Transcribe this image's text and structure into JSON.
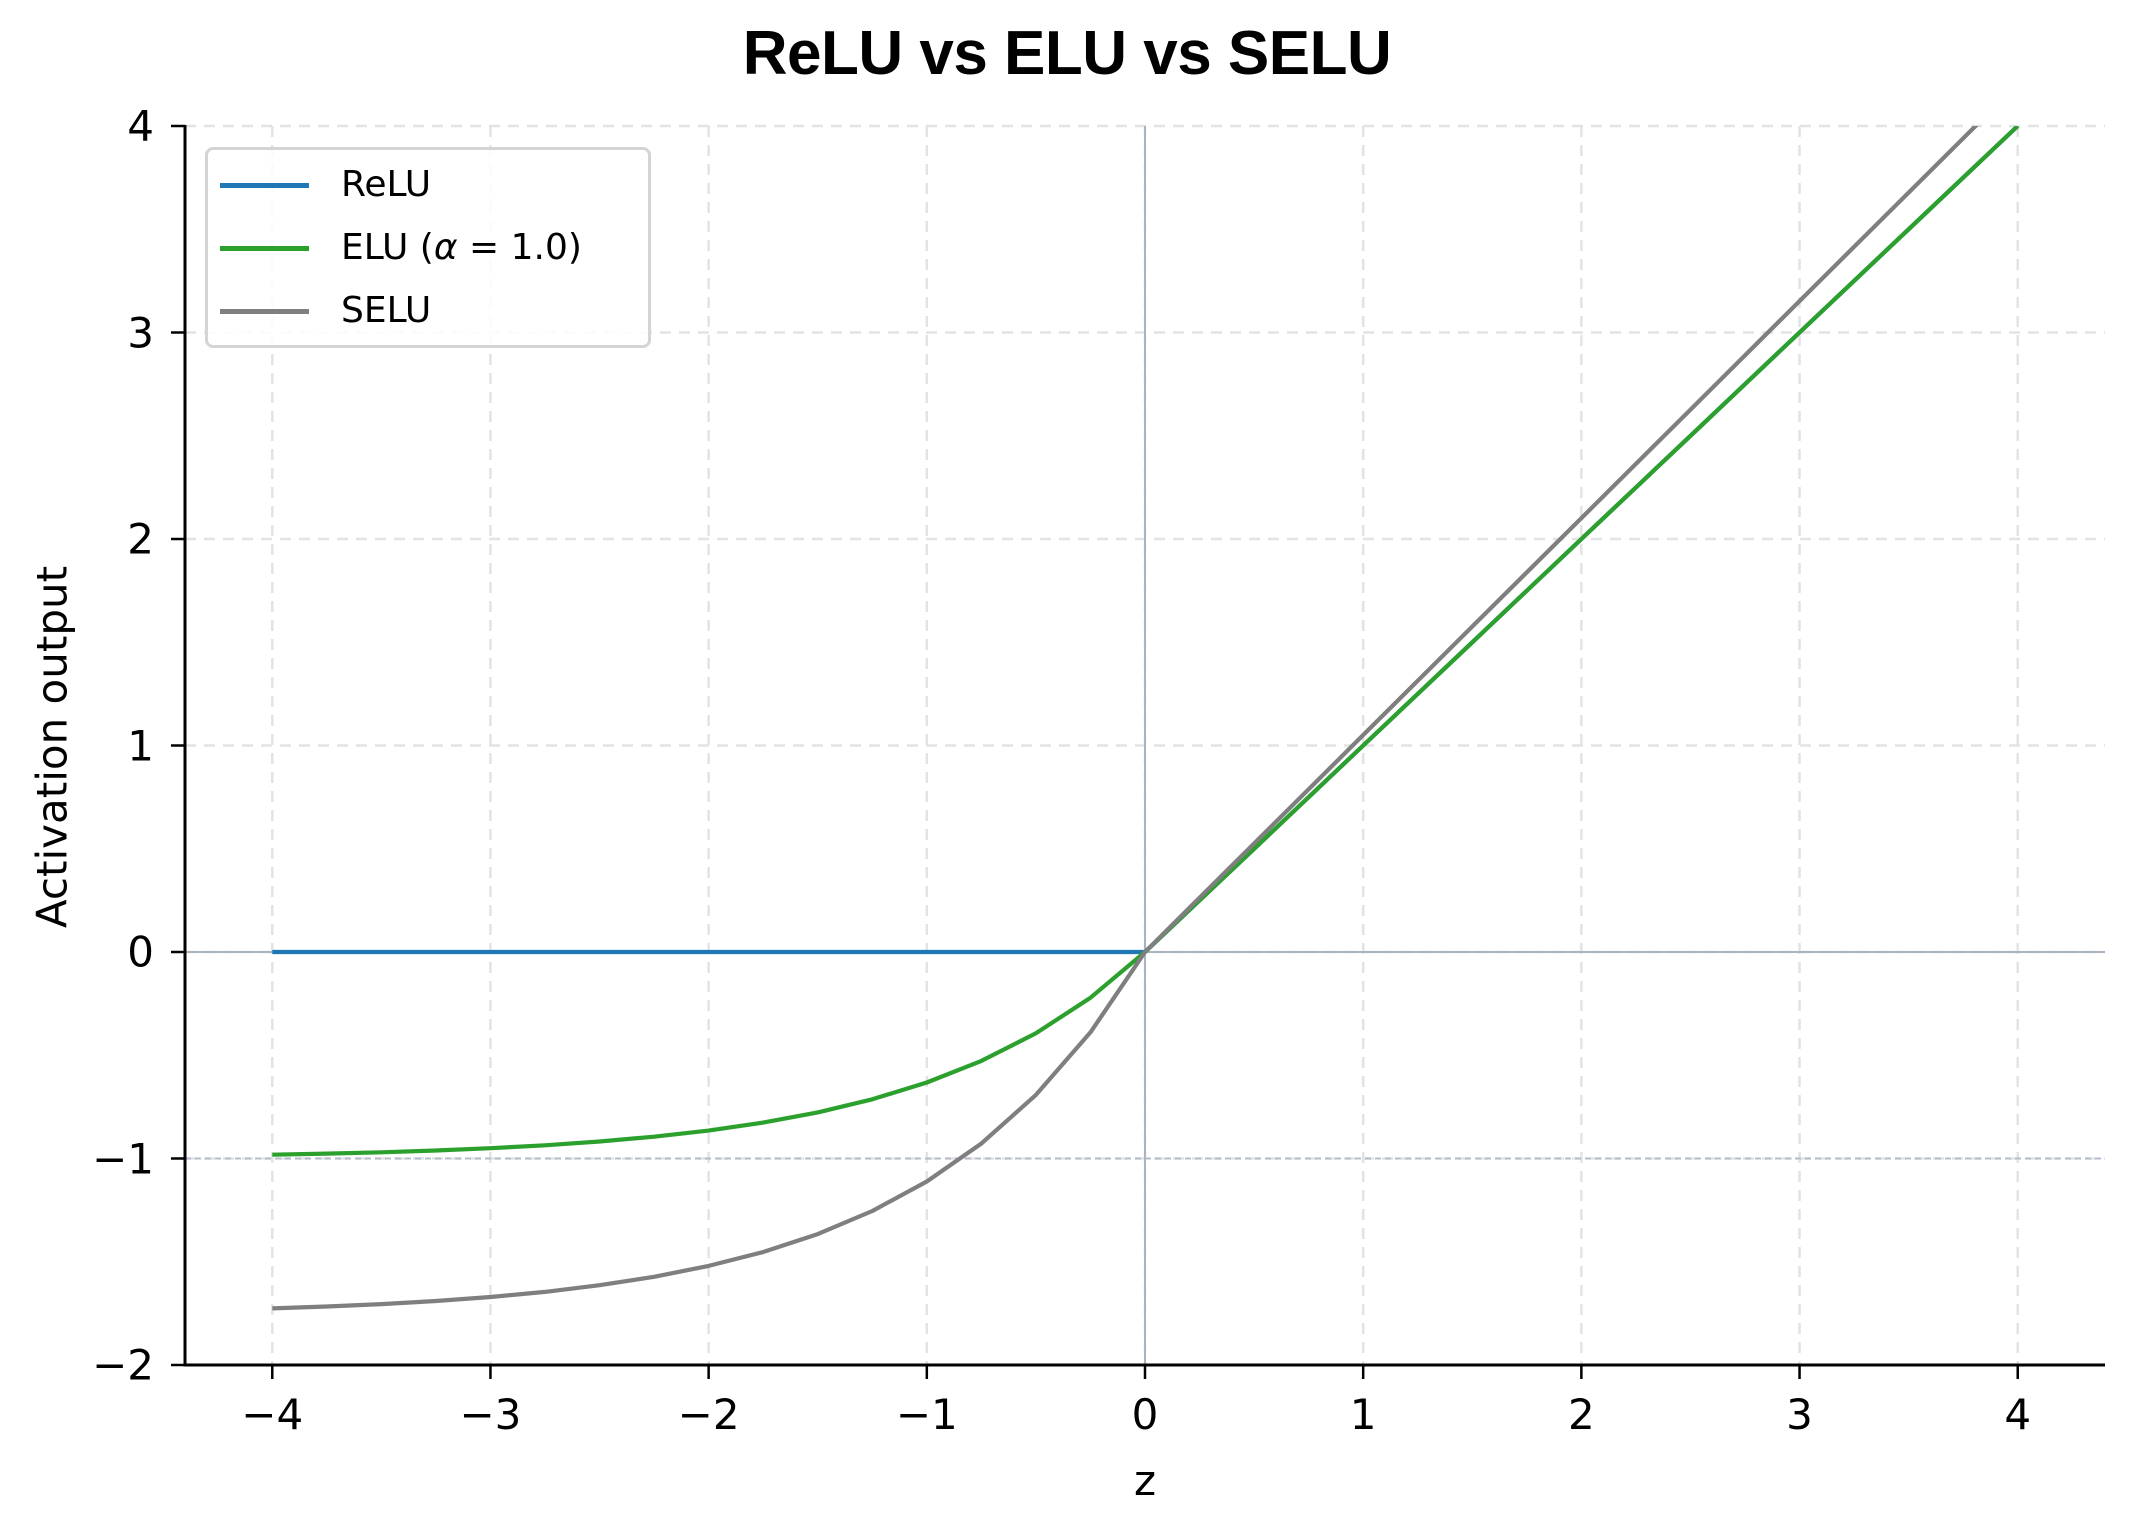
{
  "chart_data": {
    "type": "line",
    "title": "ReLU vs ELU vs SELU",
    "xlabel": "z",
    "ylabel": "Activation output",
    "xlim": [
      -4.4,
      4.4
    ],
    "ylim": [
      -2,
      4
    ],
    "xticks": [
      -4,
      -3,
      -2,
      -1,
      0,
      1,
      2,
      3,
      4
    ],
    "xtick_labels": [
      "−4",
      "−3",
      "−2",
      "−1",
      "0",
      "1",
      "2",
      "3",
      "4"
    ],
    "yticks": [
      -2,
      -1,
      0,
      1,
      2,
      3,
      4
    ],
    "ytick_labels": [
      "−2",
      "−1",
      "0",
      "1",
      "2",
      "3",
      "4"
    ],
    "grid": true,
    "legend_position": "upper left",
    "reference_lines": [
      {
        "type": "hline",
        "y": 0,
        "style": "solid",
        "color": "#aab4c0"
      },
      {
        "type": "vline",
        "x": 0,
        "style": "solid",
        "color": "#aab4c0"
      },
      {
        "type": "hline",
        "y": -1,
        "style": "dotted",
        "color": "#b4bccb"
      }
    ],
    "x": [
      -4,
      -3.75,
      -3.5,
      -3.25,
      -3,
      -2.75,
      -2.5,
      -2.25,
      -2,
      -1.75,
      -1.5,
      -1.25,
      -1,
      -0.75,
      -0.5,
      -0.25,
      0,
      0.5,
      1,
      1.5,
      2,
      2.5,
      3,
      3.5,
      4
    ],
    "series": [
      {
        "name": "ReLU",
        "color": "#1f77b4",
        "values": [
          0,
          0,
          0,
          0,
          0,
          0,
          0,
          0,
          0,
          0,
          0,
          0,
          0,
          0,
          0,
          0,
          0,
          0.5,
          1,
          1.5,
          2,
          2.5,
          3,
          3.5,
          4
        ]
      },
      {
        "name": "ELU (α = 1.0)",
        "color": "#2ca02c",
        "values": [
          -0.9817,
          -0.9765,
          -0.9698,
          -0.9612,
          -0.9502,
          -0.9361,
          -0.9179,
          -0.8946,
          -0.8647,
          -0.8262,
          -0.7769,
          -0.7135,
          -0.6321,
          -0.5276,
          -0.3935,
          -0.2212,
          0,
          0.5,
          1,
          1.5,
          2,
          2.5,
          3,
          3.5,
          4
        ]
      },
      {
        "name": "SELU",
        "color": "#7f7f7f",
        "values": [
          -1.7259,
          -1.7168,
          -1.705,
          -1.6899,
          -1.6706,
          -1.6458,
          -1.6138,
          -1.5728,
          -1.5202,
          -1.4526,
          -1.3659,
          -1.2544,
          -1.1113,
          -0.9276,
          -0.6918,
          -0.3889,
          0,
          0.5254,
          1.0507,
          1.5761,
          2.1014,
          2.6268,
          3.1521,
          3.6775,
          4.2028
        ]
      }
    ]
  },
  "legend": {
    "items": [
      {
        "label": "ReLU",
        "color": "#1f77b4"
      },
      {
        "label_prefix": "ELU (",
        "label_alpha": "α",
        "label_suffix": " = 1.0)",
        "color": "#2ca02c"
      },
      {
        "label": "SELU",
        "color": "#7f7f7f"
      }
    ]
  }
}
